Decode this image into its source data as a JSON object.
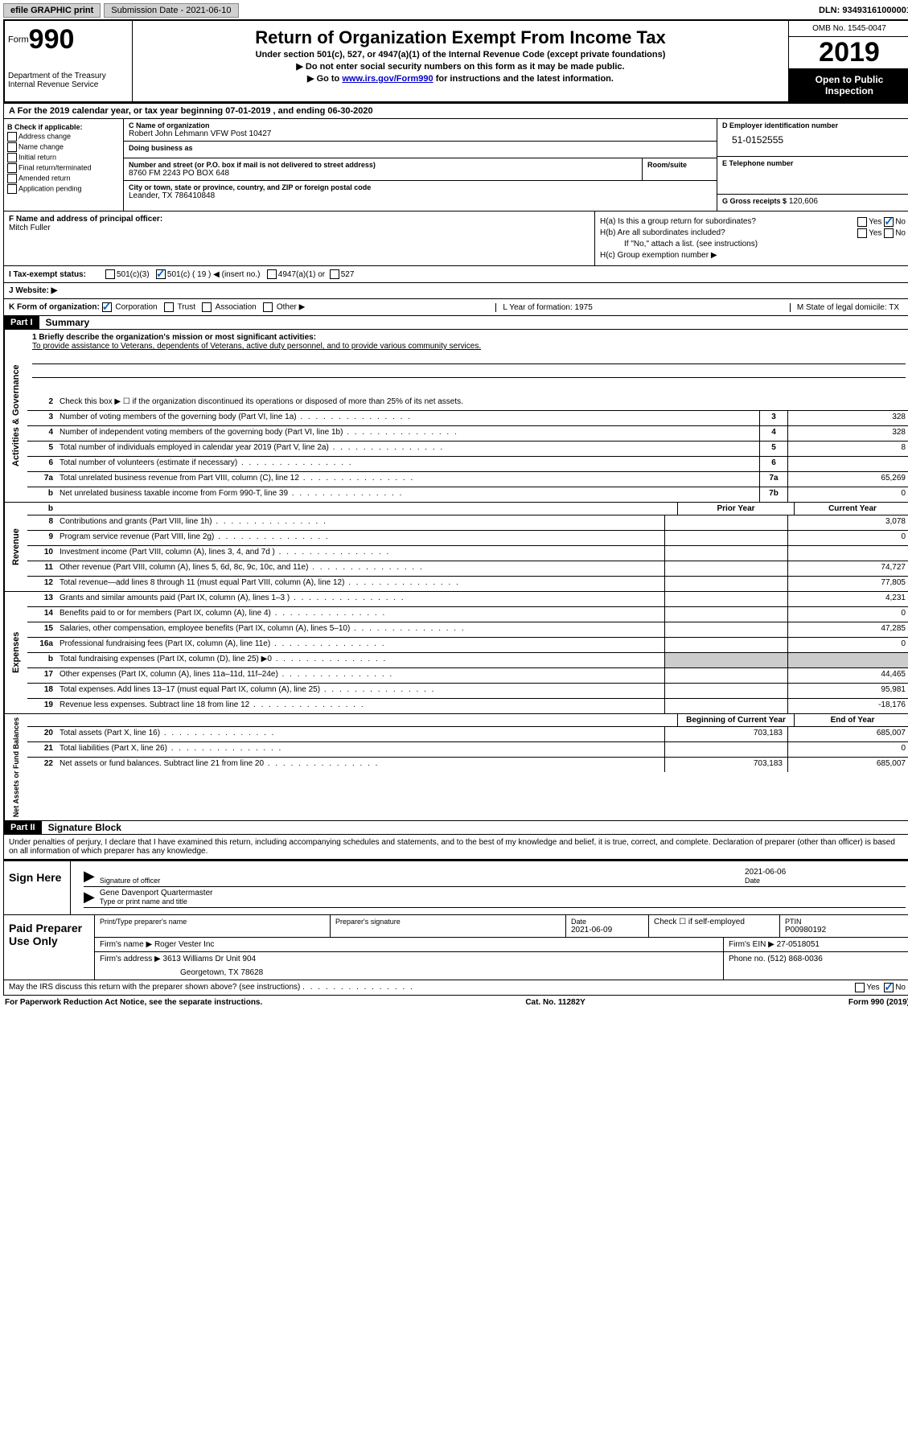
{
  "topbar": {
    "efile": "efile GRAPHIC print",
    "submission_label": "Submission Date - 2021-06-10",
    "dln": "DLN: 93493161000001"
  },
  "header": {
    "form_label": "Form",
    "form_num": "990",
    "dept": "Department of the Treasury\nInternal Revenue Service",
    "title": "Return of Organization Exempt From Income Tax",
    "sub": "Under section 501(c), 527, or 4947(a)(1) of the Internal Revenue Code (except private foundations)",
    "note1": "▶ Do not enter social security numbers on this form as it may be made public.",
    "note2_pre": "▶ Go to ",
    "note2_link": "www.irs.gov/Form990",
    "note2_post": " for instructions and the latest information.",
    "omb": "OMB No. 1545-0047",
    "year": "2019",
    "open": "Open to Public Inspection"
  },
  "row_a": "A   For the 2019 calendar year, or tax year beginning 07-01-2019     , and ending 06-30-2020",
  "col_b": {
    "title": "B Check if applicable:",
    "items": [
      "Address change",
      "Name change",
      "Initial return",
      "Final return/terminated",
      "Amended return",
      "Application pending"
    ]
  },
  "col_c": {
    "name_lbl": "C Name of organization",
    "name": "Robert John Lehmann VFW Post 10427",
    "dba_lbl": "Doing business as",
    "dba": "",
    "street_lbl": "Number and street (or P.O. box if mail is not delivered to street address)",
    "street": "8760 FM 2243 PO BOX 648",
    "room_lbl": "Room/suite",
    "city_lbl": "City or town, state or province, country, and ZIP or foreign postal code",
    "city": "Leander, TX  786410848"
  },
  "col_d": {
    "ein_lbl": "D Employer identification number",
    "ein": "51-0152555",
    "tel_lbl": "E Telephone number",
    "tel": "",
    "gross_lbl": "G Gross receipts $",
    "gross": "120,606"
  },
  "row_f": {
    "lbl": "F  Name and address of principal officer:",
    "name": "Mitch Fuller"
  },
  "row_h": {
    "ha": "H(a)  Is this a group return for subordinates?",
    "hb": "H(b)  Are all subordinates included?",
    "hb_note": "If \"No,\" attach a list. (see instructions)",
    "hc": "H(c)  Group exemption number ▶"
  },
  "row_i": {
    "lbl": "I    Tax-exempt status:",
    "opts": [
      "501(c)(3)",
      "501(c) ( 19 ) ◀ (insert no.)",
      "4947(a)(1) or",
      "527"
    ]
  },
  "row_j": "J    Website: ▶",
  "row_k": {
    "lbl": "K Form of organization:",
    "opts": [
      "Corporation",
      "Trust",
      "Association",
      "Other ▶"
    ],
    "l": "L Year of formation: 1975",
    "m": "M State of legal domicile: TX"
  },
  "part1": {
    "header": "Part I",
    "title": "Summary"
  },
  "gov": {
    "label": "Activities & Governance",
    "mission_lbl": "1   Briefly describe the organization's mission or most significant activities:",
    "mission": "To provide assistance to Veterans, dependents of Veterans, active duty personnel, and to provide various community services.",
    "line2": "Check this box ▶ ☐  if the organization discontinued its operations or disposed of more than 25% of its net assets.",
    "lines": [
      {
        "n": "3",
        "t": "Number of voting members of the governing body (Part VI, line 1a)",
        "box": "3",
        "v": "328"
      },
      {
        "n": "4",
        "t": "Number of independent voting members of the governing body (Part VI, line 1b)",
        "box": "4",
        "v": "328"
      },
      {
        "n": "5",
        "t": "Total number of individuals employed in calendar year 2019 (Part V, line 2a)",
        "box": "5",
        "v": "8"
      },
      {
        "n": "6",
        "t": "Total number of volunteers (estimate if necessary)",
        "box": "6",
        "v": ""
      },
      {
        "n": "7a",
        "t": "Total unrelated business revenue from Part VIII, column (C), line 12",
        "box": "7a",
        "v": "65,269"
      },
      {
        "n": "b",
        "t": "Net unrelated business taxable income from Form 990-T, line 39",
        "box": "7b",
        "v": "0"
      }
    ]
  },
  "rev": {
    "label": "Revenue",
    "prior": "Prior Year",
    "current": "Current Year",
    "lines": [
      {
        "n": "8",
        "t": "Contributions and grants (Part VIII, line 1h)",
        "p": "",
        "c": "3,078"
      },
      {
        "n": "9",
        "t": "Program service revenue (Part VIII, line 2g)",
        "p": "",
        "c": "0"
      },
      {
        "n": "10",
        "t": "Investment income (Part VIII, column (A), lines 3, 4, and 7d )",
        "p": "",
        "c": ""
      },
      {
        "n": "11",
        "t": "Other revenue (Part VIII, column (A), lines 5, 6d, 8c, 9c, 10c, and 11e)",
        "p": "",
        "c": "74,727"
      },
      {
        "n": "12",
        "t": "Total revenue—add lines 8 through 11 (must equal Part VIII, column (A), line 12)",
        "p": "",
        "c": "77,805"
      }
    ]
  },
  "exp": {
    "label": "Expenses",
    "lines": [
      {
        "n": "13",
        "t": "Grants and similar amounts paid (Part IX, column (A), lines 1–3 )",
        "p": "",
        "c": "4,231"
      },
      {
        "n": "14",
        "t": "Benefits paid to or for members (Part IX, column (A), line 4)",
        "p": "",
        "c": "0"
      },
      {
        "n": "15",
        "t": "Salaries, other compensation, employee benefits (Part IX, column (A), lines 5–10)",
        "p": "",
        "c": "47,285"
      },
      {
        "n": "16a",
        "t": "Professional fundraising fees (Part IX, column (A), line 11e)",
        "p": "",
        "c": "0"
      },
      {
        "n": "b",
        "t": "Total fundraising expenses (Part IX, column (D), line 25) ▶0",
        "p": "shaded",
        "c": "shaded"
      },
      {
        "n": "17",
        "t": "Other expenses (Part IX, column (A), lines 11a–11d, 11f–24e)",
        "p": "",
        "c": "44,465"
      },
      {
        "n": "18",
        "t": "Total expenses. Add lines 13–17 (must equal Part IX, column (A), line 25)",
        "p": "",
        "c": "95,981"
      },
      {
        "n": "19",
        "t": "Revenue less expenses. Subtract line 18 from line 12",
        "p": "",
        "c": "-18,176"
      }
    ]
  },
  "net": {
    "label": "Net Assets or Fund Balances",
    "beg": "Beginning of Current Year",
    "end": "End of Year",
    "lines": [
      {
        "n": "20",
        "t": "Total assets (Part X, line 16)",
        "p": "703,183",
        "c": "685,007"
      },
      {
        "n": "21",
        "t": "Total liabilities (Part X, line 26)",
        "p": "",
        "c": "0"
      },
      {
        "n": "22",
        "t": "Net assets or fund balances. Subtract line 21 from line 20",
        "p": "703,183",
        "c": "685,007"
      }
    ]
  },
  "part2": {
    "header": "Part II",
    "title": "Signature Block",
    "perjury": "Under penalties of perjury, I declare that I have examined this return, including accompanying schedules and statements, and to the best of my knowledge and belief, it is true, correct, and complete. Declaration of preparer (other than officer) is based on all information of which preparer has any knowledge."
  },
  "sign": {
    "label": "Sign Here",
    "sig_lbl": "Signature of officer",
    "date": "2021-06-06",
    "date_lbl": "Date",
    "name": "Gene Davenport Quartermaster",
    "name_lbl": "Type or print name and title"
  },
  "paid": {
    "label": "Paid Preparer Use Only",
    "r1": {
      "c1_lbl": "Print/Type preparer's name",
      "c1": "",
      "c2_lbl": "Preparer's signature",
      "c2": "",
      "c3_lbl": "Date",
      "c3": "2021-06-09",
      "c4": "Check ☐ if self-employed",
      "c5_lbl": "PTIN",
      "c5": "P00980192"
    },
    "r2": {
      "lbl": "Firm's name      ▶",
      "v": "Roger Vester Inc",
      "ein_lbl": "Firm's EIN ▶",
      "ein": "27-0518051"
    },
    "r3": {
      "lbl": "Firm's address ▶",
      "v": "3613 Williams Dr Unit 904",
      "ph_lbl": "Phone no.",
      "ph": "(512) 868-0036"
    },
    "r3b": "Georgetown, TX  78628"
  },
  "discuss": "May the IRS discuss this return with the preparer shown above? (see instructions)",
  "footer": {
    "l": "For Paperwork Reduction Act Notice, see the separate instructions.",
    "c": "Cat. No. 11282Y",
    "r": "Form 990 (2019)"
  }
}
